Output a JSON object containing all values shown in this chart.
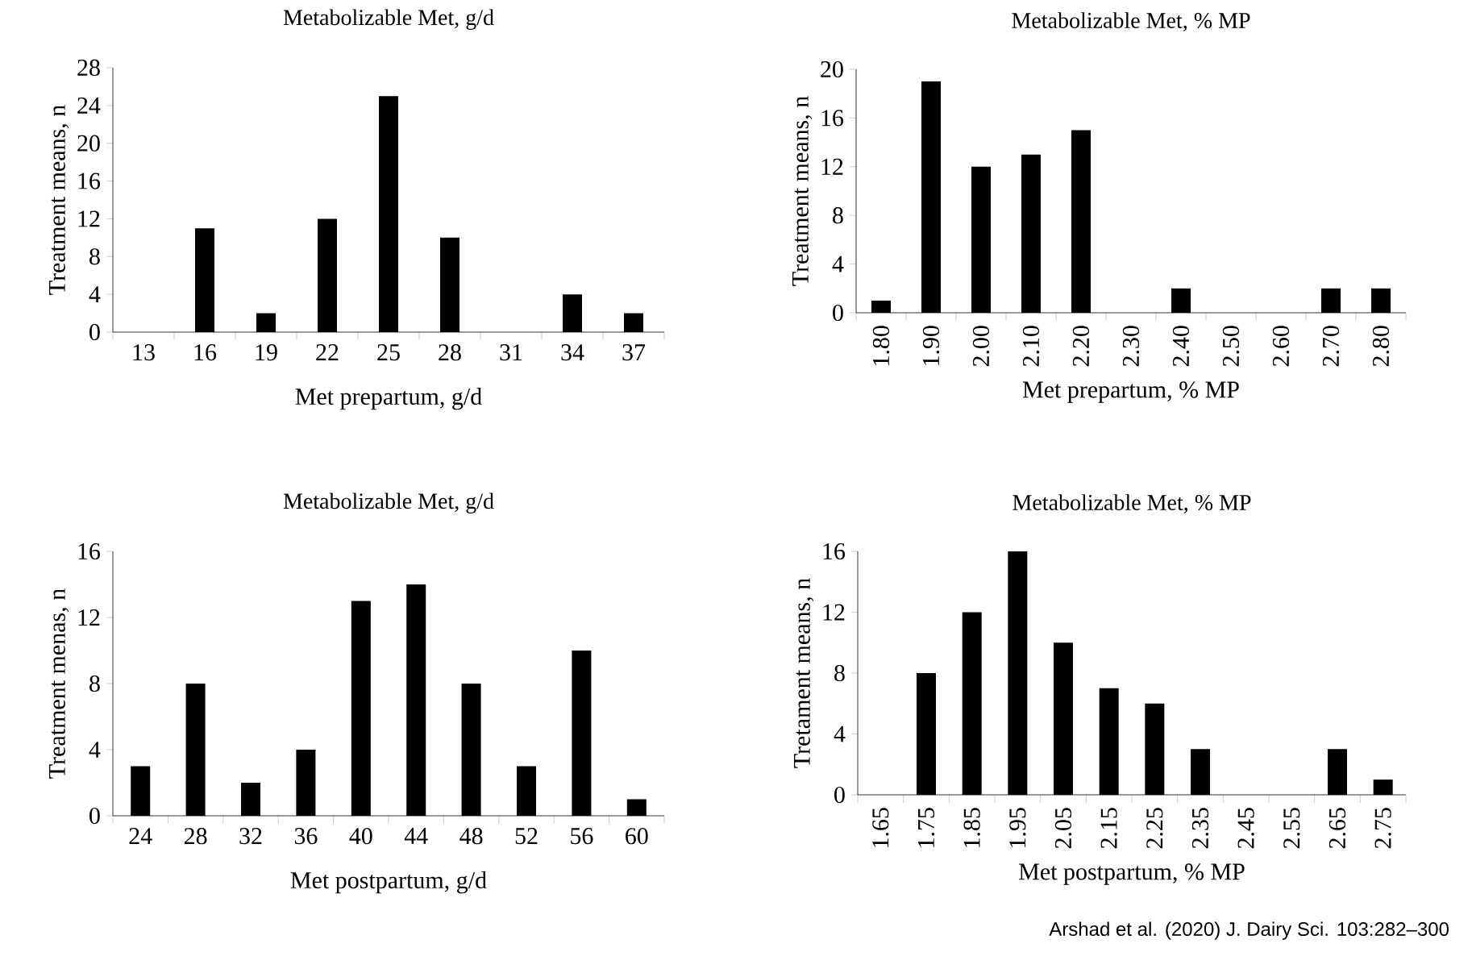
{
  "chart_data": [
    {
      "type": "bar",
      "title": "Metabolizable Met, g/d",
      "xlabel": "Met prepartum, g/d",
      "ylabel": "Treatment means, n",
      "categories": [
        "13",
        "16",
        "19",
        "22",
        "25",
        "28",
        "31",
        "34",
        "37"
      ],
      "values": [
        0,
        11,
        2,
        12,
        25,
        10,
        0,
        4,
        2
      ],
      "color": "#000000",
      "ylim": [
        0,
        28
      ],
      "yticks": [
        0,
        4,
        8,
        12,
        16,
        20,
        24,
        28
      ]
    },
    {
      "type": "bar",
      "title": "Metabolizable Met, % MP",
      "xlabel": "Met prepartum, % MP",
      "ylabel": "Treatment means, n",
      "categories": [
        "1.80",
        "1.90",
        "2.00",
        "2.10",
        "2.20",
        "2.30",
        "2.40",
        "2.50",
        "2.60",
        "2.70",
        "2.80"
      ],
      "values": [
        1,
        19,
        12,
        13,
        15,
        0,
        2,
        0,
        0,
        2,
        2
      ],
      "color": "#000000",
      "ylim": [
        0,
        20
      ],
      "yticks": [
        0,
        4,
        8,
        12,
        16,
        20
      ]
    },
    {
      "type": "bar",
      "title": "Metabolizable Met, g/d",
      "xlabel": "Met postpartum, g/d",
      "ylabel": "Treatment menas, n",
      "categories": [
        "24",
        "28",
        "32",
        "36",
        "40",
        "44",
        "48",
        "52",
        "56",
        "60"
      ],
      "values": [
        3,
        8,
        2,
        4,
        13,
        14,
        8,
        3,
        10,
        1
      ],
      "color": "#000000",
      "ylim": [
        0,
        16
      ],
      "yticks": [
        0,
        4,
        8,
        12,
        16
      ]
    },
    {
      "type": "bar",
      "title": "Metabolizable Met, % MP",
      "xlabel": "Met postpartum, % MP",
      "ylabel": "Tretament means, n",
      "categories": [
        "1.65",
        "1.75",
        "1.85",
        "1.95",
        "2.05",
        "2.15",
        "2.25",
        "2.35",
        "2.45",
        "2.55",
        "2.65",
        "2.75"
      ],
      "values": [
        0,
        8,
        12,
        16,
        10,
        7,
        6,
        3,
        0,
        0,
        3,
        1
      ],
      "color": "#000000",
      "ylim": [
        0,
        16
      ],
      "yticks": [
        0,
        4,
        8,
        12,
        16
      ],
      "annotations": [
        "Arshad et al. (2020) J. Dairy Sci. 103:282–300"
      ]
    }
  ]
}
